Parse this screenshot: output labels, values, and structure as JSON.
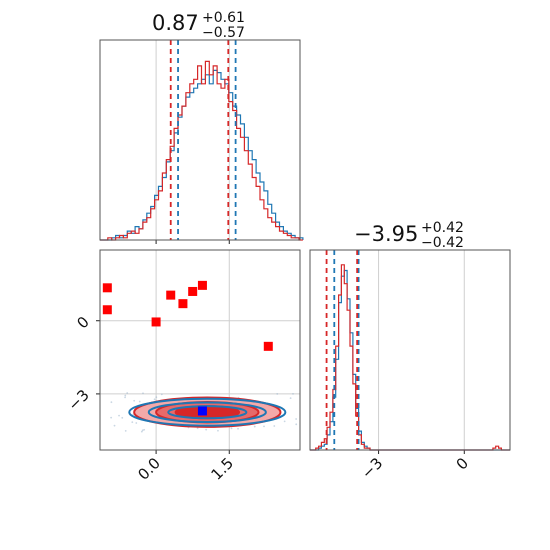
{
  "chart_data": {
    "type": "corner",
    "colors": {
      "blue": "#1f77b4",
      "red": "#d62728",
      "red_fill_light": "#f4a9a9",
      "marker_red": "#ff0000",
      "marker_blue": "#0000ff",
      "grid": "#cfcfcf"
    },
    "parameters": [
      {
        "median": "0.87",
        "upper": "+0.61",
        "lower": "−0.57"
      },
      {
        "median": "−3.95",
        "upper": "+0.42",
        "lower": "−0.42"
      }
    ],
    "axes": {
      "x1": {
        "range": [
          -1.15,
          2.95
        ],
        "ticks": [
          0.0,
          1.5
        ],
        "tick_labels": [
          "0.0",
          "1.5"
        ]
      },
      "y2": {
        "range": [
          -5.3,
          2.9
        ],
        "ticks": [
          0,
          -3
        ],
        "tick_labels": [
          "0",
          "−3"
        ]
      },
      "x2": {
        "range": [
          -5.4,
          1.6
        ],
        "ticks": [
          -3,
          0
        ],
        "tick_labels": [
          "−3",
          "0"
        ]
      }
    },
    "hist1": {
      "blue_quantiles": [
        0.45,
        1.63
      ],
      "red_quantiles": [
        0.3,
        1.48
      ],
      "bins_start": -1.15,
      "bin_width": 0.08,
      "blue_counts": [
        0,
        0,
        0,
        1,
        2,
        1,
        2,
        4,
        3,
        6,
        5,
        9,
        12,
        15,
        20,
        24,
        28,
        35,
        40,
        48,
        55,
        60,
        64,
        66,
        68,
        70,
        72,
        74,
        70,
        76,
        75,
        72,
        70,
        66,
        60,
        56,
        52,
        46,
        40,
        36,
        30,
        26,
        22,
        16,
        12,
        8,
        6,
        4,
        3,
        2,
        1,
        1
      ],
      "red_counts": [
        0,
        0,
        1,
        0,
        1,
        2,
        1,
        3,
        4,
        3,
        5,
        8,
        10,
        14,
        18,
        22,
        30,
        36,
        42,
        50,
        56,
        60,
        66,
        70,
        72,
        78,
        70,
        80,
        74,
        78,
        70,
        68,
        72,
        62,
        58,
        50,
        46,
        40,
        34,
        28,
        24,
        18,
        14,
        10,
        8,
        6,
        4,
        3,
        2,
        1,
        1,
        0
      ]
    },
    "hist2": {
      "blue_quantiles": [
        -4.55,
        -3.7
      ],
      "red_quantiles": [
        -4.82,
        -3.75
      ],
      "bins_start": -5.4,
      "bin_width": 0.1,
      "blue_counts": [
        0,
        0,
        0,
        1,
        2,
        3,
        8,
        15,
        28,
        48,
        78,
        92,
        95,
        80,
        62,
        40,
        22,
        10,
        4,
        2,
        1,
        0,
        0,
        0,
        0,
        0,
        0,
        0,
        0,
        0,
        0,
        0,
        0,
        0,
        0,
        0,
        0,
        0,
        0,
        0,
        0,
        0,
        0,
        0,
        0,
        0,
        0,
        0,
        0,
        0,
        0,
        0,
        0,
        0,
        0,
        0,
        0,
        0,
        0,
        0,
        0,
        0,
        0,
        0,
        0,
        0,
        0,
        0,
        0,
        0
      ],
      "red_counts": [
        0,
        0,
        1,
        2,
        4,
        6,
        12,
        20,
        32,
        55,
        82,
        98,
        88,
        74,
        55,
        35,
        18,
        8,
        3,
        1,
        1,
        0,
        0,
        0,
        0,
        0,
        0,
        0,
        0,
        0,
        0,
        0,
        0,
        0,
        0,
        0,
        0,
        0,
        0,
        0,
        0,
        0,
        0,
        0,
        0,
        0,
        0,
        0,
        0,
        0,
        0,
        0,
        0,
        0,
        0,
        0,
        0,
        0,
        0,
        0,
        0,
        0,
        0,
        0,
        1,
        2,
        1,
        0,
        0,
        0
      ]
    },
    "scatter": {
      "red_squares": [
        [
          -1.0,
          1.35
        ],
        [
          -1.0,
          0.45
        ],
        [
          0.0,
          -0.05
        ],
        [
          0.3,
          1.05
        ],
        [
          0.55,
          0.7
        ],
        [
          0.75,
          1.2
        ],
        [
          0.95,
          1.45
        ],
        [
          2.3,
          -1.05
        ]
      ],
      "blue_squares": [
        [
          0.95,
          -3.7
        ]
      ]
    },
    "contours": {
      "center": [
        1.05,
        -3.75
      ],
      "blue_levels": [
        [
          1.6,
          0.55
        ],
        [
          1.2,
          0.4
        ],
        [
          0.8,
          0.25
        ]
      ],
      "red_levels": [
        [
          1.5,
          0.6
        ],
        [
          1.05,
          0.42
        ],
        [
          0.65,
          0.25
        ]
      ]
    }
  }
}
